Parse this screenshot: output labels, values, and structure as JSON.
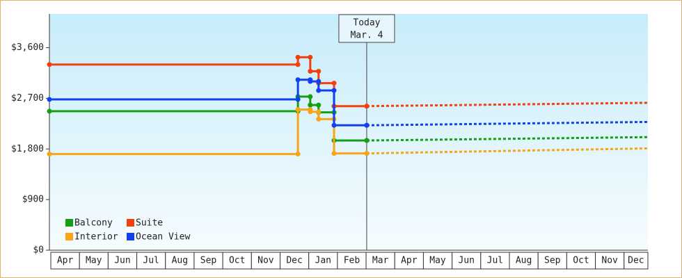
{
  "chart_data": {
    "type": "line",
    "step": "post",
    "categories": [
      "Apr",
      "May",
      "Jun",
      "Jul",
      "Aug",
      "Sep",
      "Oct",
      "Nov",
      "Dec",
      "Jan",
      "Feb",
      "Mar",
      "Apr",
      "May",
      "Jun",
      "Jul",
      "Aug",
      "Sep",
      "Oct",
      "Nov",
      "Dec"
    ],
    "xlim": [
      0,
      20.88
    ],
    "ylim": [
      0,
      4200
    ],
    "yticks": [
      {
        "value": 0,
        "label": "$0"
      },
      {
        "value": 900,
        "label": "$900"
      },
      {
        "value": 1800,
        "label": "$1,800"
      },
      {
        "value": 2700,
        "label": "$2,700"
      },
      {
        "value": 3600,
        "label": "$3,600"
      }
    ],
    "annotation": {
      "x": 11.07,
      "lines": [
        "Today",
        "Mar. 4"
      ]
    },
    "series": [
      {
        "name": "Balcony",
        "color": "#12a012",
        "x": [
          0,
          8.67,
          9.1,
          9.39,
          9.93,
          11.07
        ],
        "values": [
          2470,
          2730,
          2580,
          2450,
          1950,
          1950
        ],
        "forecast": {
          "x": [
            11.07,
            20.88
          ],
          "values": [
            1950,
            2010
          ]
        }
      },
      {
        "name": "Suite",
        "color": "#f4400c",
        "x": [
          0,
          8.67,
          9.1,
          9.39,
          9.93,
          11.07
        ],
        "values": [
          3300,
          3430,
          3180,
          2970,
          2560,
          2560
        ],
        "forecast": {
          "x": [
            11.07,
            20.88
          ],
          "values": [
            2560,
            2620
          ]
        }
      },
      {
        "name": "Interior",
        "color": "#f8a416",
        "x": [
          0,
          8.67,
          9.1,
          9.39,
          9.93,
          11.07
        ],
        "values": [
          1710,
          2500,
          2460,
          2330,
          1720,
          1720
        ],
        "forecast": {
          "x": [
            11.07,
            20.88
          ],
          "values": [
            1720,
            1810
          ]
        }
      },
      {
        "name": "Ocean View",
        "color": "#1040f0",
        "x": [
          0,
          8.67,
          9.1,
          9.39,
          9.93,
          11.07
        ],
        "values": [
          2680,
          3030,
          3000,
          2840,
          2220,
          2220
        ],
        "forecast": {
          "x": [
            11.07,
            20.88
          ],
          "values": [
            2220,
            2280
          ]
        }
      }
    ]
  }
}
